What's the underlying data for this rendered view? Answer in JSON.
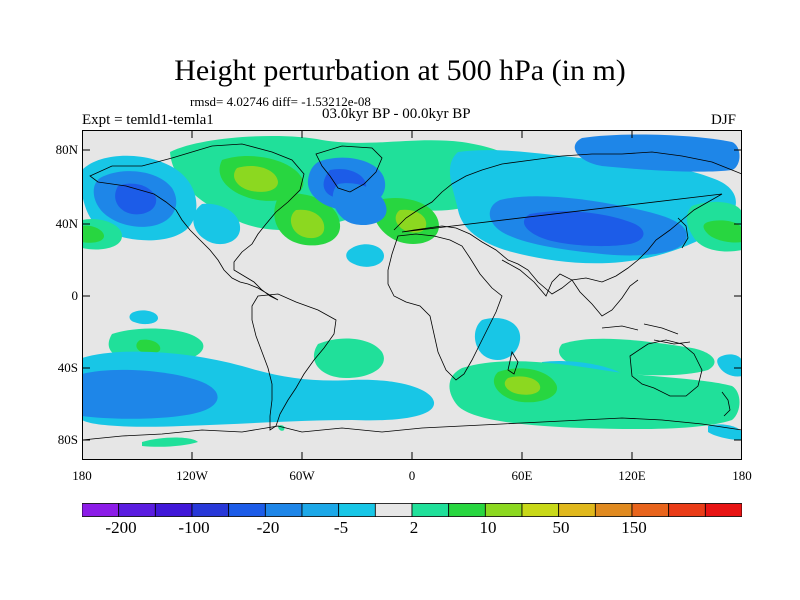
{
  "title": "Height perturbation at 500 hPa (in m)",
  "stats": "rmsd= 4.02746 diff= -1.53212e-08",
  "period": "03.0kyr BP - 00.0kyr BP",
  "experiment": "Expt = temld1-temla1",
  "season": "DJF",
  "y_ticks": [
    "80N",
    "40N",
    "0",
    "40S",
    "80S"
  ],
  "x_ticks": [
    "180",
    "120W",
    "60W",
    "0",
    "60E",
    "120E",
    "180"
  ],
  "colorbar": {
    "colors": [
      "#8c1ce8",
      "#5a1ce0",
      "#4018d8",
      "#2838d8",
      "#1c5ce8",
      "#1e86e8",
      "#1ca8e8",
      "#18c6e6",
      "#e6e6e6",
      "#20e09a",
      "#28d640",
      "#8cd820",
      "#c8d818",
      "#e0b81c",
      "#e08a20",
      "#e8641c",
      "#ea3c18",
      "#e81414"
    ],
    "labels": [
      "-200",
      "-100",
      "-20",
      "-5",
      "2",
      "10",
      "50",
      "150"
    ]
  },
  "palette": {
    "background": "#e6e6e6",
    "coast": "#000000"
  }
}
